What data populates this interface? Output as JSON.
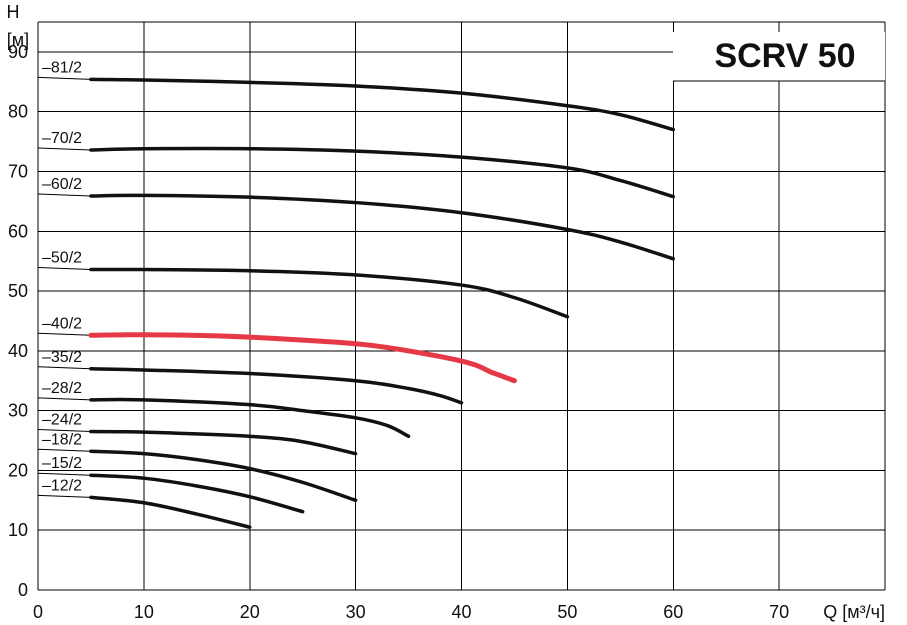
{
  "chart_data": {
    "type": "line",
    "title": "SCRV 50",
    "ylabel_line1": "H",
    "ylabel_line2": "[м]",
    "xlabel": "Q [м³/ч]",
    "xlim": [
      0,
      80
    ],
    "ylim": [
      0,
      95
    ],
    "x_ticks": [
      "0",
      "10",
      "20",
      "30",
      "40",
      "50",
      "60",
      "70"
    ],
    "y_ticks": [
      "0",
      "10",
      "20",
      "30",
      "40",
      "50",
      "60",
      "70",
      "80",
      "90"
    ],
    "grid": true,
    "series": [
      {
        "name": "–81/2",
        "color": "#111111",
        "points": [
          [
            5,
            85.4
          ],
          [
            10,
            85.3
          ],
          [
            20,
            84.9
          ],
          [
            30,
            84.3
          ],
          [
            40,
            83.1
          ],
          [
            50,
            81.0
          ],
          [
            55,
            79.5
          ],
          [
            60,
            77.0
          ]
        ]
      },
      {
        "name": "–70/2",
        "color": "#111111",
        "points": [
          [
            5,
            73.6
          ],
          [
            10,
            73.8
          ],
          [
            20,
            73.8
          ],
          [
            30,
            73.4
          ],
          [
            40,
            72.4
          ],
          [
            50,
            70.6
          ],
          [
            55,
            68.5
          ],
          [
            60,
            65.8
          ]
        ]
      },
      {
        "name": "–60/2",
        "color": "#111111",
        "points": [
          [
            5,
            65.9
          ],
          [
            10,
            66.0
          ],
          [
            20,
            65.7
          ],
          [
            30,
            64.8
          ],
          [
            40,
            63.1
          ],
          [
            50,
            60.3
          ],
          [
            55,
            58.2
          ],
          [
            60,
            55.4
          ]
        ]
      },
      {
        "name": "–50/2",
        "color": "#111111",
        "points": [
          [
            5,
            53.6
          ],
          [
            10,
            53.6
          ],
          [
            20,
            53.4
          ],
          [
            30,
            52.7
          ],
          [
            40,
            51.0
          ],
          [
            45,
            48.9
          ],
          [
            50,
            45.7
          ]
        ]
      },
      {
        "name": "–40/2",
        "color": "#e53946",
        "points": [
          [
            5,
            42.6
          ],
          [
            10,
            42.7
          ],
          [
            17,
            42.5
          ],
          [
            25,
            41.8
          ],
          [
            32,
            40.8
          ],
          [
            40,
            38.3
          ],
          [
            43,
            36.3
          ],
          [
            45,
            35.0
          ]
        ]
      },
      {
        "name": "–35/2",
        "color": "#111111",
        "points": [
          [
            5,
            37.0
          ],
          [
            10,
            36.8
          ],
          [
            20,
            36.2
          ],
          [
            30,
            35.0
          ],
          [
            35,
            33.7
          ],
          [
            38,
            32.5
          ],
          [
            40,
            31.3
          ]
        ]
      },
      {
        "name": "–28/2",
        "color": "#111111",
        "points": [
          [
            5,
            31.8
          ],
          [
            10,
            31.8
          ],
          [
            20,
            31.0
          ],
          [
            25,
            30.0
          ],
          [
            30,
            28.8
          ],
          [
            33,
            27.5
          ],
          [
            35,
            25.7
          ]
        ]
      },
      {
        "name": "–24/2",
        "color": "#111111",
        "points": [
          [
            5,
            26.5
          ],
          [
            10,
            26.4
          ],
          [
            20,
            25.7
          ],
          [
            25,
            24.8
          ],
          [
            30,
            22.8
          ]
        ]
      },
      {
        "name": "–18/2",
        "color": "#111111",
        "points": [
          [
            5,
            23.2
          ],
          [
            10,
            22.8
          ],
          [
            15,
            21.8
          ],
          [
            20,
            20.3
          ],
          [
            25,
            18.0
          ],
          [
            30,
            15.0
          ]
        ]
      },
      {
        "name": "–15/2",
        "color": "#111111",
        "points": [
          [
            5,
            19.2
          ],
          [
            10,
            18.7
          ],
          [
            15,
            17.4
          ],
          [
            20,
            15.6
          ],
          [
            25,
            13.1
          ]
        ]
      },
      {
        "name": "–12/2",
        "color": "#111111",
        "points": [
          [
            5,
            15.5
          ],
          [
            10,
            14.6
          ],
          [
            15,
            12.7
          ],
          [
            20,
            10.5
          ]
        ]
      }
    ]
  }
}
